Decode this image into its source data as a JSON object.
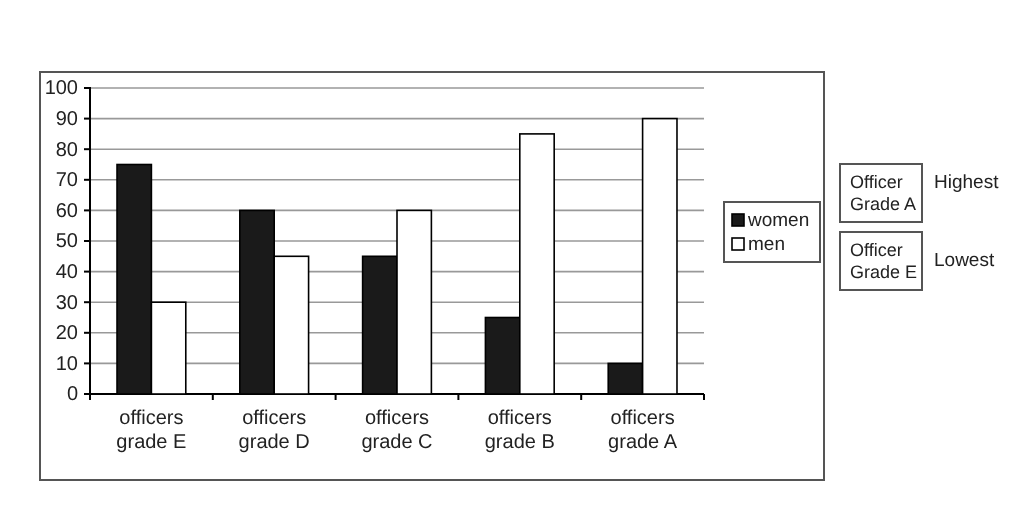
{
  "chart_data": {
    "type": "bar",
    "categories": [
      "officers grade E",
      "officers grade D",
      "officers grade C",
      "officers grade B",
      "officers grade A"
    ],
    "series": [
      {
        "name": "women",
        "color": "#1a1a1a",
        "values": [
          75,
          60,
          45,
          25,
          10
        ]
      },
      {
        "name": "men",
        "color": "#ffffff",
        "values": [
          30,
          45,
          60,
          85,
          90
        ]
      }
    ],
    "ylim": [
      0,
      100
    ],
    "yticks": [
      0,
      10,
      20,
      30,
      40,
      50,
      60,
      70,
      80,
      90,
      100
    ],
    "grid": "y",
    "legend": "right",
    "annotations": [
      "Officer Grade A",
      "Highest",
      "Officer Grade E",
      "Lowest"
    ]
  }
}
